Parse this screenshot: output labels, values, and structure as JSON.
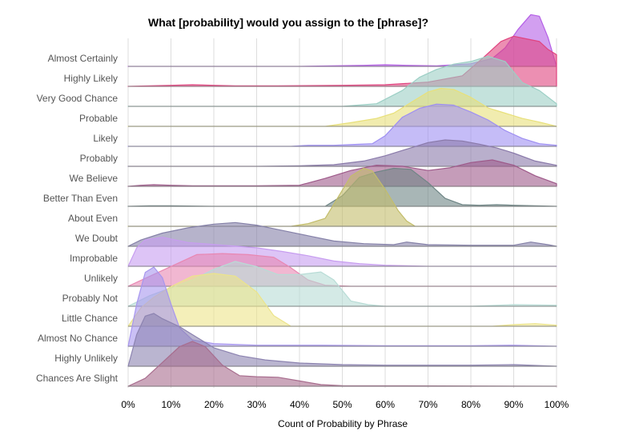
{
  "chart_data": {
    "type": "ridgeline",
    "title": "What [probability] would you assign to the [phrase]?",
    "xlabel": "Count of Probability by Phrase",
    "ylabel": "",
    "xlim": [
      0,
      100
    ],
    "x_ticks": [
      "0%",
      "10%",
      "20%",
      "30%",
      "40%",
      "50%",
      "60%",
      "70%",
      "80%",
      "90%",
      "100%"
    ],
    "x_tick_values": [
      0,
      10,
      20,
      30,
      40,
      50,
      60,
      70,
      80,
      90,
      100
    ],
    "grid": "vertical",
    "series": [
      {
        "name": "Almost Certainly",
        "color": "#b45fe6",
        "points": [
          [
            0,
            0
          ],
          [
            40,
            0
          ],
          [
            55,
            0.02
          ],
          [
            60,
            0.03
          ],
          [
            65,
            0.02
          ],
          [
            72,
            0.01
          ],
          [
            80,
            0.05
          ],
          [
            85,
            0.15
          ],
          [
            88,
            0.35
          ],
          [
            91,
            0.7
          ],
          [
            94,
            0.98
          ],
          [
            96,
            0.95
          ],
          [
            98,
            0.55
          ],
          [
            100,
            0
          ]
        ]
      },
      {
        "name": "Highly Likely",
        "color": "#e0447f",
        "points": [
          [
            0,
            0
          ],
          [
            5,
            0.01
          ],
          [
            10,
            0.02
          ],
          [
            15,
            0.03
          ],
          [
            20,
            0.02
          ],
          [
            25,
            0.01
          ],
          [
            35,
            0.01
          ],
          [
            50,
            0.02
          ],
          [
            60,
            0.03
          ],
          [
            70,
            0.08
          ],
          [
            78,
            0.2
          ],
          [
            83,
            0.55
          ],
          [
            87,
            0.85
          ],
          [
            90,
            0.95
          ],
          [
            93,
            0.9
          ],
          [
            96,
            0.85
          ],
          [
            98,
            0.7
          ],
          [
            100,
            0.6
          ]
        ]
      },
      {
        "name": "Very Good Chance",
        "color": "#9ccfc5",
        "points": [
          [
            0,
            0
          ],
          [
            50,
            0
          ],
          [
            58,
            0.05
          ],
          [
            64,
            0.3
          ],
          [
            68,
            0.55
          ],
          [
            72,
            0.7
          ],
          [
            76,
            0.8
          ],
          [
            80,
            0.85
          ],
          [
            84,
            0.95
          ],
          [
            88,
            0.85
          ],
          [
            92,
            0.45
          ],
          [
            96,
            0.3
          ],
          [
            100,
            0.05
          ]
        ]
      },
      {
        "name": "Probable",
        "color": "#e8e07a",
        "points": [
          [
            0,
            0
          ],
          [
            46,
            0
          ],
          [
            52,
            0.07
          ],
          [
            58,
            0.15
          ],
          [
            62,
            0.25
          ],
          [
            66,
            0.45
          ],
          [
            70,
            0.65
          ],
          [
            73,
            0.72
          ],
          [
            76,
            0.7
          ],
          [
            80,
            0.55
          ],
          [
            84,
            0.35
          ],
          [
            88,
            0.25
          ],
          [
            92,
            0.15
          ],
          [
            96,
            0.08
          ],
          [
            100,
            0
          ]
        ]
      },
      {
        "name": "Likely",
        "color": "#9e8ff2",
        "points": [
          [
            0,
            0
          ],
          [
            38,
            0
          ],
          [
            42,
            0.02
          ],
          [
            48,
            0.02
          ],
          [
            54,
            0.04
          ],
          [
            57,
            0.05
          ],
          [
            60,
            0.2
          ],
          [
            64,
            0.55
          ],
          [
            68,
            0.72
          ],
          [
            72,
            0.8
          ],
          [
            76,
            0.78
          ],
          [
            80,
            0.65
          ],
          [
            84,
            0.5
          ],
          [
            88,
            0.3
          ],
          [
            92,
            0.15
          ],
          [
            96,
            0.05
          ],
          [
            100,
            0.02
          ]
        ]
      },
      {
        "name": "Probably",
        "color": "#8a7aaa",
        "points": [
          [
            0,
            0
          ],
          [
            30,
            0
          ],
          [
            40,
            0.01
          ],
          [
            48,
            0.03
          ],
          [
            55,
            0.1
          ],
          [
            60,
            0.2
          ],
          [
            66,
            0.35
          ],
          [
            70,
            0.45
          ],
          [
            74,
            0.5
          ],
          [
            78,
            0.48
          ],
          [
            82,
            0.42
          ],
          [
            86,
            0.35
          ],
          [
            90,
            0.25
          ],
          [
            95,
            0.1
          ],
          [
            100,
            0.02
          ]
        ]
      },
      {
        "name": "We Believe",
        "color": "#9e5a8a",
        "points": [
          [
            0,
            0
          ],
          [
            3,
            0.02
          ],
          [
            6,
            0.03
          ],
          [
            10,
            0.02
          ],
          [
            15,
            0.01
          ],
          [
            30,
            0.01
          ],
          [
            40,
            0.02
          ],
          [
            46,
            0.15
          ],
          [
            52,
            0.3
          ],
          [
            58,
            0.4
          ],
          [
            64,
            0.38
          ],
          [
            70,
            0.3
          ],
          [
            75,
            0.35
          ],
          [
            80,
            0.45
          ],
          [
            85,
            0.5
          ],
          [
            90,
            0.4
          ],
          [
            95,
            0.2
          ],
          [
            100,
            0.05
          ]
        ]
      },
      {
        "name": "Better Than Even",
        "color": "#6e8585",
        "points": [
          [
            0,
            0
          ],
          [
            5,
            0.01
          ],
          [
            10,
            0.01
          ],
          [
            20,
            0
          ],
          [
            46,
            0
          ],
          [
            50,
            0.2
          ],
          [
            54,
            0.55
          ],
          [
            58,
            0.65
          ],
          [
            62,
            0.72
          ],
          [
            66,
            0.7
          ],
          [
            70,
            0.45
          ],
          [
            74,
            0.15
          ],
          [
            78,
            0.03
          ],
          [
            82,
            0.02
          ],
          [
            86,
            0.03
          ],
          [
            90,
            0.02
          ],
          [
            95,
            0.01
          ],
          [
            100,
            0
          ]
        ]
      },
      {
        "name": "About Even",
        "color": "#c3bd6a",
        "points": [
          [
            0,
            0
          ],
          [
            38,
            0
          ],
          [
            42,
            0.05
          ],
          [
            46,
            0.15
          ],
          [
            49,
            0.55
          ],
          [
            52,
            0.95
          ],
          [
            55,
            1.1
          ],
          [
            57,
            1.05
          ],
          [
            60,
            0.7
          ],
          [
            63,
            0.3
          ],
          [
            65,
            0.1
          ],
          [
            67,
            0
          ],
          [
            100,
            0
          ]
        ]
      },
      {
        "name": "We Doubt",
        "color": "#8581a8",
        "points": [
          [
            0,
            0
          ],
          [
            3,
            0.12
          ],
          [
            8,
            0.25
          ],
          [
            14,
            0.35
          ],
          [
            20,
            0.42
          ],
          [
            25,
            0.45
          ],
          [
            30,
            0.4
          ],
          [
            36,
            0.3
          ],
          [
            42,
            0.2
          ],
          [
            48,
            0.1
          ],
          [
            55,
            0.05
          ],
          [
            62,
            0.03
          ],
          [
            65,
            0.08
          ],
          [
            70,
            0.03
          ],
          [
            80,
            0.02
          ],
          [
            90,
            0.02
          ],
          [
            94,
            0.08
          ],
          [
            98,
            0.03
          ],
          [
            100,
            0
          ]
        ]
      },
      {
        "name": "Improbable",
        "color": "#c79df0",
        "points": [
          [
            0,
            0
          ],
          [
            2,
            0.35
          ],
          [
            4,
            0.5
          ],
          [
            8,
            0.55
          ],
          [
            14,
            0.45
          ],
          [
            22,
            0.4
          ],
          [
            30,
            0.35
          ],
          [
            36,
            0.28
          ],
          [
            42,
            0.2
          ],
          [
            48,
            0.1
          ],
          [
            54,
            0.05
          ],
          [
            60,
            0.02
          ],
          [
            70,
            0
          ],
          [
            100,
            0
          ]
        ]
      },
      {
        "name": "Unlikely",
        "color": "#e887b2",
        "points": [
          [
            0,
            0
          ],
          [
            4,
            0.15
          ],
          [
            8,
            0.3
          ],
          [
            12,
            0.45
          ],
          [
            16,
            0.6
          ],
          [
            22,
            0.62
          ],
          [
            28,
            0.6
          ],
          [
            34,
            0.55
          ],
          [
            38,
            0.35
          ],
          [
            42,
            0.12
          ],
          [
            46,
            0.02
          ],
          [
            52,
            0
          ],
          [
            100,
            0
          ]
        ]
      },
      {
        "name": "Probably Not",
        "color": "#b8dcd6",
        "points": [
          [
            0,
            0
          ],
          [
            5,
            0.2
          ],
          [
            10,
            0.35
          ],
          [
            15,
            0.5
          ],
          [
            20,
            0.7
          ],
          [
            25,
            0.85
          ],
          [
            30,
            0.75
          ],
          [
            35,
            0.6
          ],
          [
            40,
            0.6
          ],
          [
            45,
            0.65
          ],
          [
            48,
            0.5
          ],
          [
            52,
            0.1
          ],
          [
            56,
            0.03
          ],
          [
            60,
            0
          ],
          [
            80,
            0
          ],
          [
            90,
            0.03
          ],
          [
            100,
            0.02
          ]
        ]
      },
      {
        "name": "Little Chance",
        "color": "#ece48a",
        "points": [
          [
            0,
            0
          ],
          [
            3,
            0.35
          ],
          [
            6,
            0.55
          ],
          [
            10,
            0.75
          ],
          [
            15,
            0.95
          ],
          [
            20,
            1.0
          ],
          [
            25,
            0.95
          ],
          [
            30,
            0.65
          ],
          [
            34,
            0.2
          ],
          [
            38,
            0
          ],
          [
            85,
            0
          ],
          [
            90,
            0.03
          ],
          [
            95,
            0.05
          ],
          [
            100,
            0.02
          ]
        ]
      },
      {
        "name": "Almost No Chance",
        "color": "#a796ee",
        "points": [
          [
            0,
            0
          ],
          [
            2,
            0.8
          ],
          [
            4,
            1.4
          ],
          [
            6,
            1.5
          ],
          [
            8,
            1.3
          ],
          [
            10,
            0.8
          ],
          [
            12,
            0.35
          ],
          [
            15,
            0.12
          ],
          [
            20,
            0.05
          ],
          [
            30,
            0.02
          ],
          [
            45,
            0.02
          ],
          [
            60,
            0.01
          ],
          [
            80,
            0.01
          ],
          [
            90,
            0.02
          ],
          [
            100,
            0
          ]
        ]
      },
      {
        "name": "Highly Unlikely",
        "color": "#8c83b0",
        "points": [
          [
            0,
            0
          ],
          [
            2,
            0.6
          ],
          [
            4,
            0.95
          ],
          [
            6,
            1.0
          ],
          [
            8,
            0.9
          ],
          [
            12,
            0.75
          ],
          [
            16,
            0.55
          ],
          [
            20,
            0.35
          ],
          [
            26,
            0.2
          ],
          [
            32,
            0.12
          ],
          [
            40,
            0.06
          ],
          [
            50,
            0.03
          ],
          [
            60,
            0.02
          ],
          [
            80,
            0.02
          ],
          [
            90,
            0.03
          ],
          [
            100,
            0
          ]
        ]
      },
      {
        "name": "Chances Are Slight",
        "color": "#a86d8e",
        "points": [
          [
            0,
            0
          ],
          [
            4,
            0.15
          ],
          [
            8,
            0.45
          ],
          [
            12,
            0.75
          ],
          [
            15,
            0.85
          ],
          [
            18,
            0.75
          ],
          [
            22,
            0.4
          ],
          [
            26,
            0.2
          ],
          [
            30,
            0.18
          ],
          [
            35,
            0.17
          ],
          [
            40,
            0.1
          ],
          [
            45,
            0.03
          ],
          [
            50,
            0.01
          ],
          [
            100,
            0
          ]
        ]
      }
    ]
  }
}
